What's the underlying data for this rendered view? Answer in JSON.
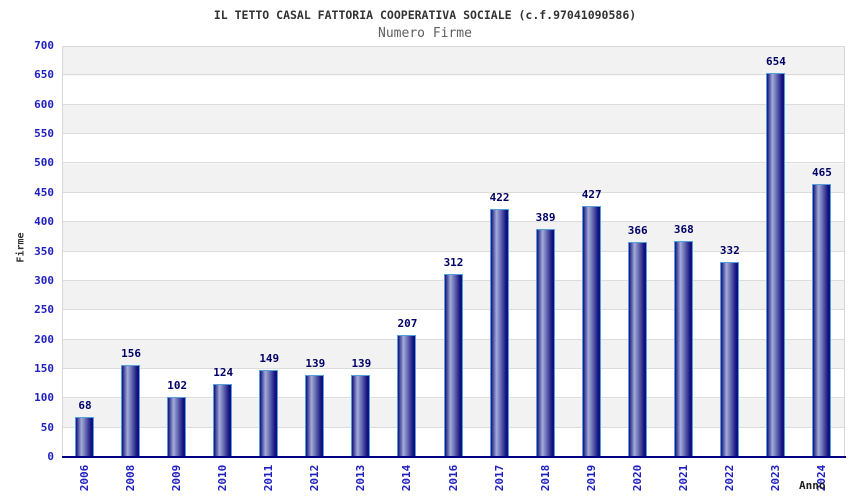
{
  "chart_data": {
    "type": "bar",
    "title": "IL TETTO CASAL FATTORIA COOPERATIVA SOCIALE (c.f.97041090586)",
    "subtitle": "Numero Firme",
    "xlabel": "Anno",
    "ylabel": "Firme",
    "categories": [
      "2006",
      "2008",
      "2009",
      "2010",
      "2011",
      "2012",
      "2013",
      "2014",
      "2016",
      "2017",
      "2018",
      "2019",
      "2020",
      "2021",
      "2022",
      "2023",
      "2024"
    ],
    "values": [
      68,
      156,
      102,
      124,
      149,
      139,
      139,
      207,
      312,
      422,
      389,
      427,
      366,
      368,
      332,
      654,
      465
    ],
    "ylim": [
      0,
      700
    ],
    "ytick_step": 50,
    "grid": true,
    "legend_position": "none",
    "colors": {
      "bar_dark": "#10107e",
      "bar_light": "#a4acd8",
      "bar_border": "#55a0dc",
      "value_label": "#000066",
      "tick_label_blue": "#2020c0",
      "band_gray": "#f2f2f2",
      "band_white": "#ffffff",
      "gridline": "#dcdcdc",
      "axis_line": "#000080",
      "title_color": "#333333",
      "subtitle_color": "#606060"
    }
  }
}
